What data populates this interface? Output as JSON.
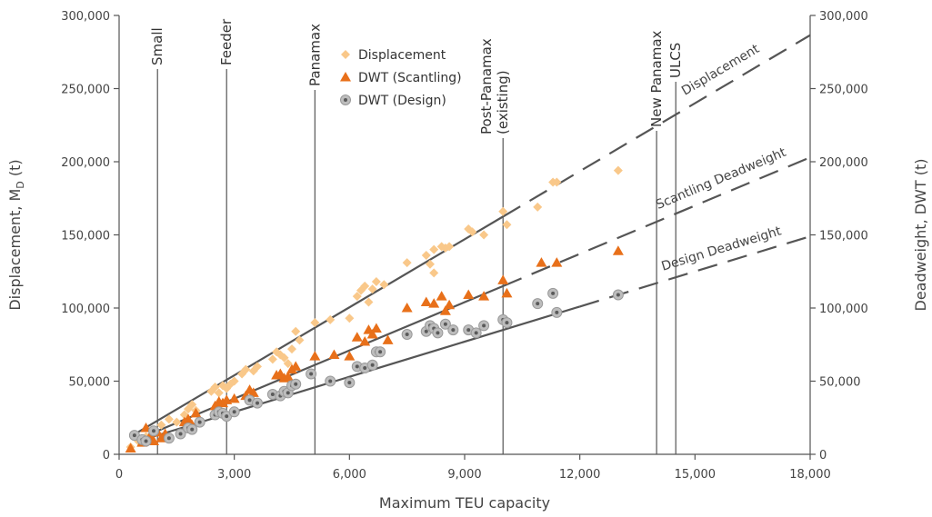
{
  "chart_data": {
    "type": "scatter",
    "xlabel": "Maximum TEU capacity",
    "ylabel_left": "Displacement, M",
    "ylabel_left_sub": "D",
    "ylabel_left_unit": " (t)",
    "ylabel_right": "Deadweight, DWT (t)",
    "xlim": [
      0,
      18000
    ],
    "ylim": [
      0,
      300000
    ],
    "xticks": [
      0,
      3000,
      6000,
      9000,
      12000,
      15000,
      18000
    ],
    "xtick_labels": [
      "0",
      "3,000",
      "6,000",
      "9,000",
      "12,000",
      "15,000",
      "18,000"
    ],
    "yticks": [
      0,
      50000,
      100000,
      150000,
      200000,
      250000,
      300000
    ],
    "ytick_labels": [
      "0",
      "50,000",
      "100,000",
      "150,000",
      "200,000",
      "250,000",
      "300,000"
    ],
    "grid": false,
    "legend_position": "top-center",
    "categories": [
      {
        "name": "Small",
        "x": 1000
      },
      {
        "name": "Feeder",
        "x": 2800
      },
      {
        "name": "Panamax",
        "x": 5100
      },
      {
        "name": "Post-Panamax\n(existing)",
        "x": 10000
      },
      {
        "name": "New Panamax",
        "x": 14000
      },
      {
        "name": "ULCS",
        "x": 14500
      }
    ],
    "series": [
      {
        "name": "Displacement",
        "marker": "diamond",
        "color": "#f9c88a",
        "points": [
          [
            300,
            5000
          ],
          [
            500,
            9000
          ],
          [
            700,
            12000
          ],
          [
            900,
            15000
          ],
          [
            1100,
            20000
          ],
          [
            1300,
            24000
          ],
          [
            1500,
            22000
          ],
          [
            1700,
            27000
          ],
          [
            1800,
            31000
          ],
          [
            1900,
            34000
          ],
          [
            2000,
            30000
          ],
          [
            2400,
            43000
          ],
          [
            2500,
            46000
          ],
          [
            2600,
            42000
          ],
          [
            2700,
            47000
          ],
          [
            2800,
            45000
          ],
          [
            2900,
            48000
          ],
          [
            3000,
            50000
          ],
          [
            3200,
            55000
          ],
          [
            3300,
            58000
          ],
          [
            3500,
            57000
          ],
          [
            3600,
            60000
          ],
          [
            4000,
            65000
          ],
          [
            4100,
            70000
          ],
          [
            4200,
            68000
          ],
          [
            4300,
            66000
          ],
          [
            4400,
            62000
          ],
          [
            4500,
            72000
          ],
          [
            4600,
            84000
          ],
          [
            4700,
            78000
          ],
          [
            5100,
            90000
          ],
          [
            5500,
            92000
          ],
          [
            6000,
            93000
          ],
          [
            6200,
            108000
          ],
          [
            6300,
            112000
          ],
          [
            6400,
            115000
          ],
          [
            6500,
            104000
          ],
          [
            6600,
            113000
          ],
          [
            6700,
            118000
          ],
          [
            6900,
            116000
          ],
          [
            7500,
            131000
          ],
          [
            8000,
            136000
          ],
          [
            8100,
            130000
          ],
          [
            8200,
            124000
          ],
          [
            8200,
            140000
          ],
          [
            8400,
            142000
          ],
          [
            8500,
            141000
          ],
          [
            8600,
            142000
          ],
          [
            9100,
            154000
          ],
          [
            9200,
            152000
          ],
          [
            9500,
            150000
          ],
          [
            10000,
            166000
          ],
          [
            10100,
            157000
          ],
          [
            10900,
            169000
          ],
          [
            11300,
            186000
          ],
          [
            11400,
            186000
          ],
          [
            13000,
            194000
          ]
        ]
      },
      {
        "name": "DWT (Scantling)",
        "marker": "triangle",
        "color": "#e8701a",
        "points": [
          [
            300,
            4000
          ],
          [
            600,
            8000
          ],
          [
            700,
            18000
          ],
          [
            800,
            12000
          ],
          [
            900,
            9000
          ],
          [
            1000,
            15000
          ],
          [
            1100,
            11000
          ],
          [
            1200,
            14000
          ],
          [
            1700,
            22000
          ],
          [
            1800,
            24000
          ],
          [
            1900,
            20000
          ],
          [
            2000,
            28000
          ],
          [
            2500,
            33000
          ],
          [
            2600,
            36000
          ],
          [
            2700,
            35000
          ],
          [
            2800,
            37000
          ],
          [
            3000,
            38000
          ],
          [
            3300,
            40000
          ],
          [
            3400,
            44000
          ],
          [
            3500,
            42000
          ],
          [
            4100,
            54000
          ],
          [
            4200,
            55000
          ],
          [
            4300,
            52000
          ],
          [
            4400,
            53000
          ],
          [
            4500,
            58000
          ],
          [
            4600,
            60000
          ],
          [
            5100,
            67000
          ],
          [
            5600,
            68000
          ],
          [
            6000,
            67000
          ],
          [
            6200,
            80000
          ],
          [
            6400,
            77000
          ],
          [
            6500,
            85000
          ],
          [
            6600,
            82000
          ],
          [
            6700,
            86000
          ],
          [
            7000,
            78000
          ],
          [
            7500,
            100000
          ],
          [
            8000,
            104000
          ],
          [
            8200,
            103000
          ],
          [
            8400,
            108000
          ],
          [
            8500,
            98000
          ],
          [
            8600,
            102000
          ],
          [
            9100,
            109000
          ],
          [
            9500,
            108000
          ],
          [
            10000,
            119000
          ],
          [
            10100,
            110000
          ],
          [
            11000,
            131000
          ],
          [
            11400,
            131000
          ],
          [
            13000,
            139000
          ]
        ]
      },
      {
        "name": "DWT (Design)",
        "marker": "circle",
        "color": "#7c7c7c",
        "points": [
          [
            400,
            13000
          ],
          [
            600,
            10000
          ],
          [
            700,
            9000
          ],
          [
            900,
            16000
          ],
          [
            1300,
            11000
          ],
          [
            1600,
            14000
          ],
          [
            1800,
            18000
          ],
          [
            1900,
            17000
          ],
          [
            2100,
            22000
          ],
          [
            2500,
            27000
          ],
          [
            2600,
            29000
          ],
          [
            2700,
            28000
          ],
          [
            2800,
            26000
          ],
          [
            3000,
            29000
          ],
          [
            3400,
            37000
          ],
          [
            3600,
            35000
          ],
          [
            4000,
            41000
          ],
          [
            4200,
            40000
          ],
          [
            4300,
            43000
          ],
          [
            4400,
            42000
          ],
          [
            4500,
            47000
          ],
          [
            4600,
            48000
          ],
          [
            5000,
            55000
          ],
          [
            5500,
            50000
          ],
          [
            6000,
            49000
          ],
          [
            6200,
            60000
          ],
          [
            6400,
            59000
          ],
          [
            6600,
            61000
          ],
          [
            6700,
            70000
          ],
          [
            6800,
            70000
          ],
          [
            7500,
            82000
          ],
          [
            8000,
            84000
          ],
          [
            8100,
            88000
          ],
          [
            8200,
            86000
          ],
          [
            8300,
            83000
          ],
          [
            8500,
            89000
          ],
          [
            8700,
            85000
          ],
          [
            9100,
            85000
          ],
          [
            9300,
            83000
          ],
          [
            9500,
            88000
          ],
          [
            10000,
            92000
          ],
          [
            10100,
            90000
          ],
          [
            10900,
            103000
          ],
          [
            11300,
            110000
          ],
          [
            11400,
            97000
          ],
          [
            13000,
            109000
          ]
        ]
      }
    ],
    "trend_lines": [
      {
        "label": "Displacement",
        "slope": 15.5,
        "intercept": 7500,
        "solid_to": 10000,
        "dashed_to": 18000
      },
      {
        "label": "Scantling Deadweight",
        "slope": 11.0,
        "intercept": 5000,
        "solid_to": 10000,
        "dashed_to": 18000
      },
      {
        "label": "Design Deadweight",
        "slope": 8.0,
        "intercept": 5000,
        "solid_to": 12000,
        "dashed_to": 18000
      }
    ]
  }
}
